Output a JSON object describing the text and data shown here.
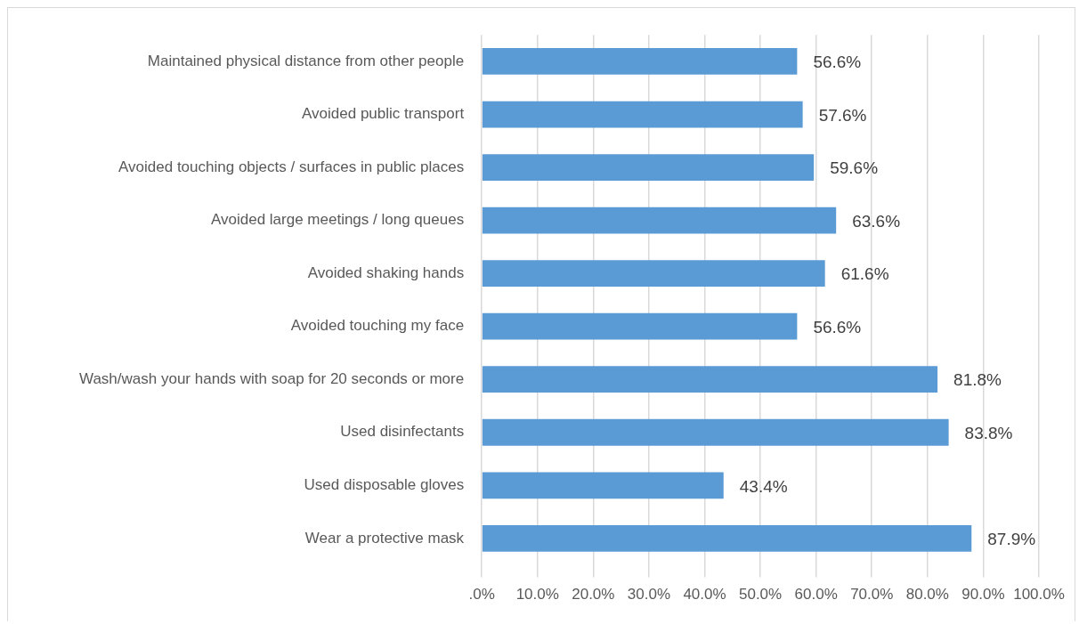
{
  "chart_data": {
    "type": "bar",
    "orientation": "horizontal",
    "categories": [
      "Maintained physical distance from other people",
      "Avoided public transport",
      "Avoided touching objects / surfaces in public places",
      "Avoided large meetings / long queues",
      "Avoided shaking hands",
      "Avoided touching my face",
      "Wash/wash your hands with soap for 20 seconds or more",
      "Used disinfectants",
      "Used disposable gloves",
      "Wear a protective mask"
    ],
    "values": [
      56.6,
      57.6,
      59.6,
      63.6,
      61.6,
      56.6,
      81.8,
      83.8,
      43.4,
      87.9
    ],
    "value_labels": [
      "56.6%",
      "57.6%",
      "59.6%",
      "63.6%",
      "61.6%",
      "56.6%",
      "81.8%",
      "83.8%",
      "43.4%",
      "87.9%"
    ],
    "color": "#5b9bd5",
    "xlim": [
      0,
      100
    ],
    "xticks": [
      {
        "value": 0,
        "label": ".0%"
      },
      {
        "value": 10,
        "label": "10.0%"
      },
      {
        "value": 20,
        "label": "20.0%"
      },
      {
        "value": 30,
        "label": "30.0%"
      },
      {
        "value": 40,
        "label": "40.0%"
      },
      {
        "value": 50,
        "label": "50.0%"
      },
      {
        "value": 60,
        "label": "60.0%"
      },
      {
        "value": 70,
        "label": "70.0%"
      },
      {
        "value": 80,
        "label": "80.0%"
      },
      {
        "value": 90,
        "label": "90.0%"
      },
      {
        "value": 100,
        "label": "100.0%"
      }
    ],
    "grid": "x",
    "legend": false
  }
}
